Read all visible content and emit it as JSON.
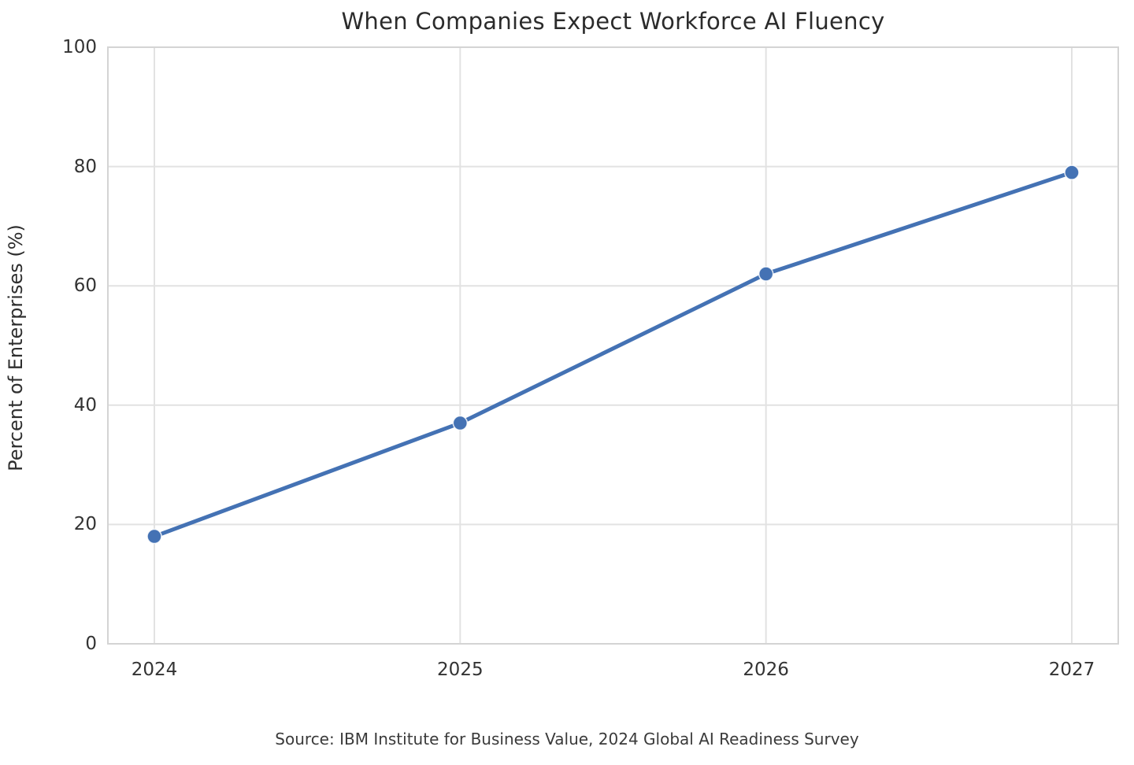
{
  "figure": {
    "background_color": "#ffffff"
  },
  "chart_data": {
    "type": "line",
    "title": "When Companies Expect Workforce AI Fluency",
    "categories": [
      "2024",
      "2025",
      "2026",
      "2027"
    ],
    "series": [
      {
        "name": "Percent of Enterprises",
        "values": [
          18,
          37,
          62,
          79
        ]
      }
    ],
    "xlabel": "",
    "ylabel": "Percent of Enterprises (%)",
    "ylim": [
      0,
      100
    ],
    "yticks": [
      0,
      20,
      40,
      60,
      80,
      100
    ],
    "grid": true,
    "legend": false,
    "line_color": "#4472b4",
    "marker_color": "#4472b4",
    "marker_edge_color": "#ffffff",
    "grid_color": "#e2e2e2",
    "spine_color": "#d4d4d4",
    "source_note": "Source: IBM Institute for Business Value, 2024 Global AI Readiness Survey"
  }
}
